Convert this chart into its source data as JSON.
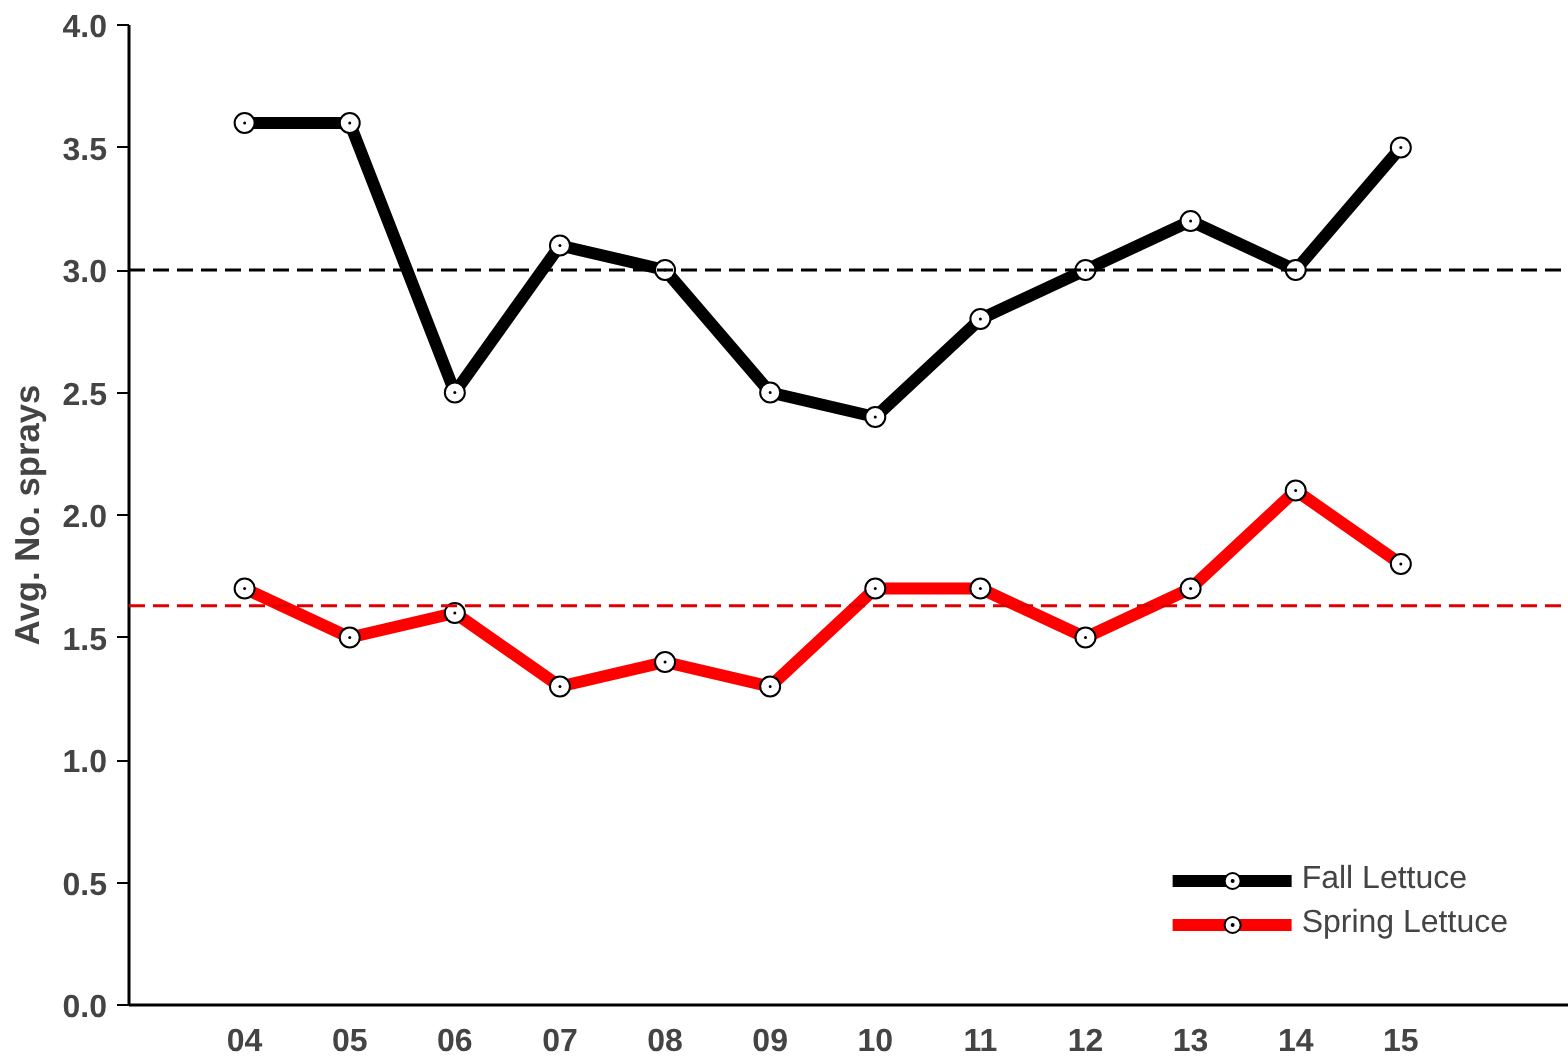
{
  "chart_data": {
    "type": "line",
    "ylabel": "Avg. No. sprays",
    "categories": [
      "04",
      "05",
      "06",
      "07",
      "08",
      "09",
      "10",
      "11",
      "12",
      "13",
      "14",
      "15"
    ],
    "ylim": [
      0,
      4.0
    ],
    "yticks": [
      {
        "value": 0,
        "label": "0.0"
      },
      {
        "value": 0.5,
        "label": "0.5"
      },
      {
        "value": 1,
        "label": "1.0"
      },
      {
        "value": 1.5,
        "label": "1.5"
      },
      {
        "value": 2,
        "label": "2.0"
      },
      {
        "value": 2.5,
        "label": "2.5"
      },
      {
        "value": 3,
        "label": "3.0"
      },
      {
        "value": 3.5,
        "label": "3.5"
      },
      {
        "value": 4,
        "label": "4.0"
      }
    ],
    "series": [
      {
        "name": "Fall Lettuce",
        "color": "#000000",
        "values": [
          3.6,
          3.6,
          2.5,
          3.1,
          3.0,
          2.5,
          2.4,
          2.8,
          3.0,
          3.2,
          3.0,
          3.5
        ]
      },
      {
        "name": "Spring Lettuce",
        "color": "#ff0000",
        "values": [
          1.7,
          1.5,
          1.6,
          1.3,
          1.4,
          1.3,
          1.7,
          1.7,
          1.5,
          1.7,
          2.1,
          1.8
        ]
      }
    ],
    "ref_lines": [
      {
        "axis": "y",
        "value": 3.0,
        "label": null,
        "color": "#000000",
        "line_style": "dashed"
      },
      {
        "axis": "y",
        "value": 1.63,
        "label": null,
        "color": "#e00000",
        "line_style": "dashed"
      }
    ],
    "marker": "circle",
    "line_style": "solid",
    "grid": false,
    "legend": "bottom right"
  }
}
